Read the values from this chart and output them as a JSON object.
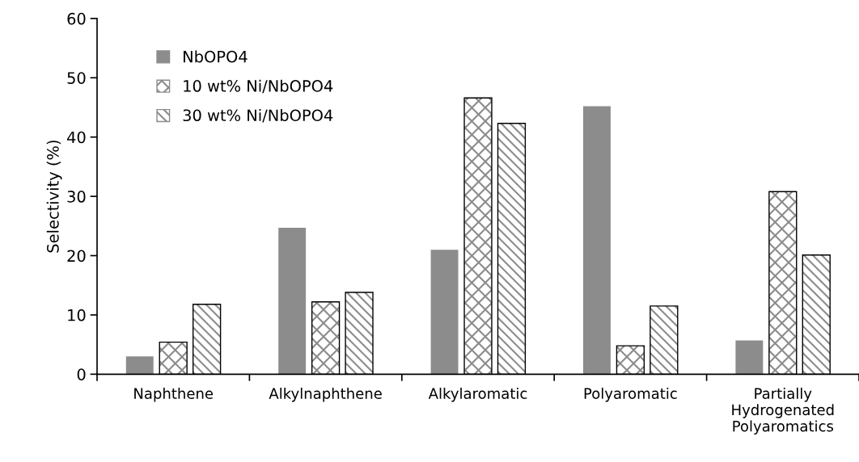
{
  "chart_data": {
    "type": "bar",
    "ylabel": "Selectivity (%)",
    "categories": [
      "Naphthene",
      "Alkylnaphthene",
      "Alkylaromatic",
      "Polyaromatic",
      "Partially\nHydrogenated\nPolyaromatics"
    ],
    "series": [
      {
        "name": "NbOPO4",
        "color": "#8c8c8c",
        "values": [
          3.0,
          24.7,
          21.0,
          45.2,
          5.7
        ]
      },
      {
        "name": "10 wt% Ni/NbOPO4",
        "color": "#8c8c8c",
        "values": [
          5.4,
          12.2,
          46.6,
          4.8,
          30.8
        ]
      },
      {
        "name": "30 wt% Ni/NbOPO4",
        "color": "#8c8c8c",
        "values": [
          11.8,
          13.8,
          42.3,
          11.5,
          20.1
        ]
      }
    ],
    "ylim": [
      0,
      60
    ],
    "yticks": [
      0,
      10,
      20,
      30,
      40,
      50,
      60
    ],
    "grid": false,
    "legend": "top left"
  }
}
